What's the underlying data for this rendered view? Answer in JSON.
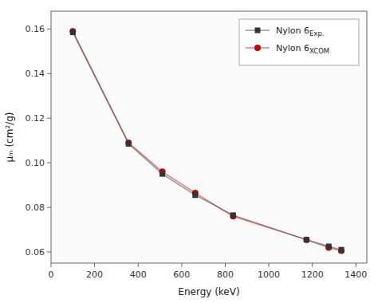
{
  "chart_data": {
    "type": "line",
    "x": [
      100,
      356,
      511,
      662,
      836,
      1173,
      1275,
      1333
    ],
    "series": [
      {
        "name": "Nylon 6Exp.",
        "color": "#333333",
        "marker": "square",
        "values": [
          0.1585,
          0.1085,
          0.095,
          0.0855,
          0.0765,
          0.0655,
          0.0625,
          0.061
        ]
      },
      {
        "name": "Nylon 6XCOM",
        "color": "#cc0000",
        "marker": "circle",
        "values": [
          0.159,
          0.109,
          0.096,
          0.0865,
          0.076,
          0.0655,
          0.062,
          0.0605
        ]
      }
    ],
    "x_label": "Energy (keV)",
    "y_label": "μₘ (cm²/g)",
    "xlim": [
      0,
      1450
    ],
    "ylim": [
      0.055,
      0.168
    ],
    "xticks": [
      0,
      200,
      400,
      600,
      800,
      1000,
      1200,
      1400
    ],
    "yticks": [
      0.06,
      0.08,
      {
        "value": 0.1,
        "label": "0.10"
      },
      0.12,
      0.14,
      0.16
    ],
    "grid": false,
    "legend": "upper right"
  }
}
